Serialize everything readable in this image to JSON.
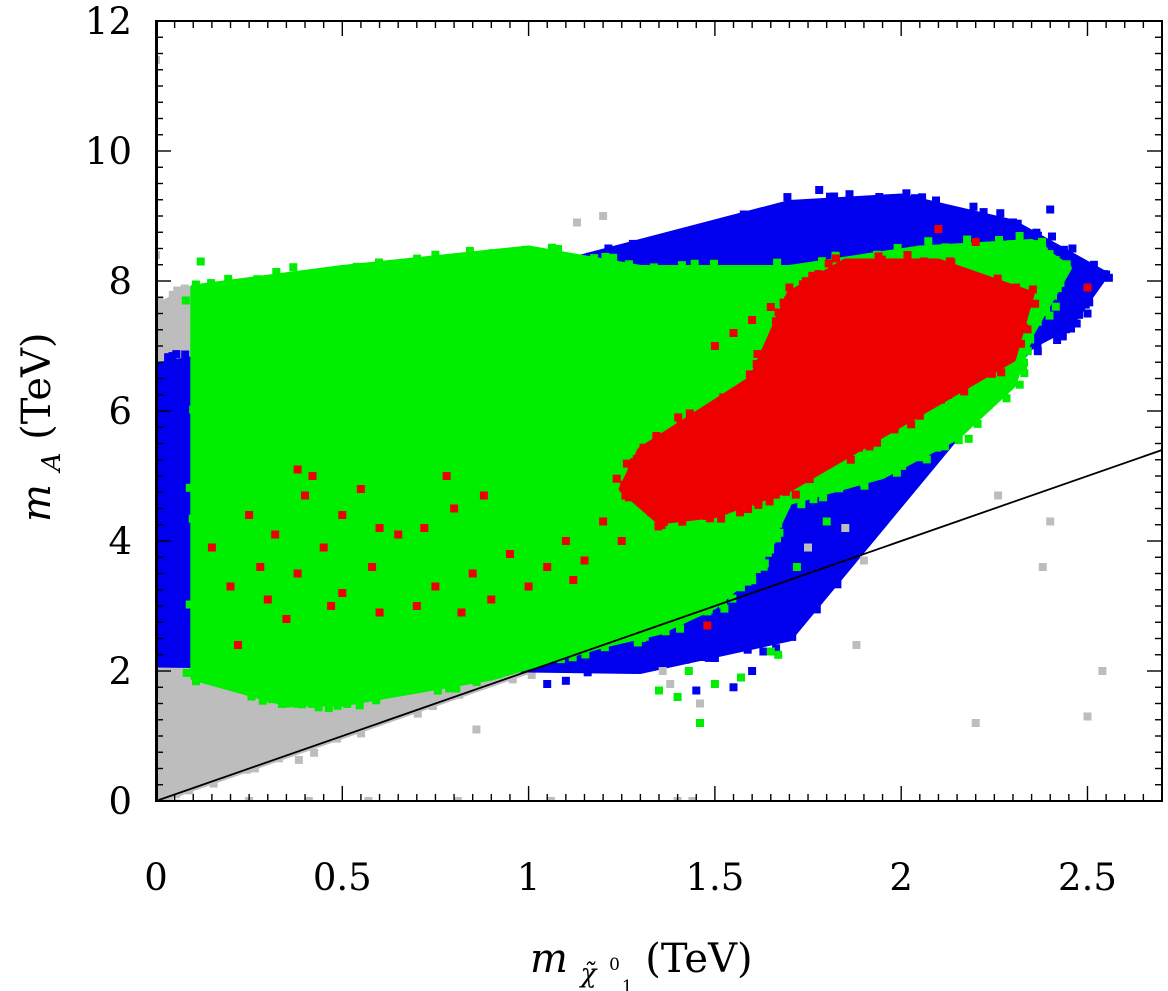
{
  "chart_data": {
    "type": "scatter",
    "title": "",
    "xlabel": {
      "symbol": "m",
      "subscript": "χ̃",
      "subsub_sup": "0",
      "subsub_sub": "1",
      "unit": "(TeV)"
    },
    "ylabel": {
      "symbol": "m",
      "subscript": "A",
      "unit": "(TeV)"
    },
    "xlim": [
      0,
      2.7
    ],
    "ylim": [
      0,
      12
    ],
    "x_ticks": [
      0,
      0.5,
      1,
      1.5,
      2,
      2.5
    ],
    "x_tick_labels": [
      "0",
      "0.5",
      "1",
      "1.5",
      "2",
      "2.5"
    ],
    "y_ticks": [
      0,
      2,
      4,
      6,
      8,
      10,
      12
    ],
    "y_tick_labels": [
      "0",
      "2",
      "4",
      "6",
      "8",
      "10",
      "12"
    ],
    "grid": false,
    "legend": "none",
    "reference_line": {
      "label": "m_A = 2 m_chi",
      "slope": 2,
      "color": "#000000"
    },
    "series": [
      {
        "name": "gray",
        "color": "#bdbdbd",
        "region": [
          [
            0,
            0
          ],
          [
            0,
            7.6
          ],
          [
            0.1,
            7.9
          ],
          [
            0.1,
            2.2
          ],
          [
            0.5,
            1.6
          ],
          [
            1.0,
            2.1
          ],
          [
            1.15,
            2.3
          ],
          [
            0.5,
            1.0
          ],
          [
            0.05,
            0.1
          ]
        ],
        "points": [
          [
            0.0,
            11.4
          ],
          [
            0.0,
            8.4
          ],
          [
            0.01,
            7.7
          ],
          [
            1.13,
            8.9
          ],
          [
            1.2,
            9.0
          ],
          [
            0.25,
            0.0
          ],
          [
            0.41,
            0.0
          ],
          [
            0.57,
            0.0
          ],
          [
            0.81,
            0.0
          ],
          [
            1.06,
            0.0
          ],
          [
            1.4,
            0.0
          ],
          [
            1.44,
            0.0
          ],
          [
            0.86,
            1.1
          ],
          [
            1.36,
            2.0
          ],
          [
            1.38,
            1.8
          ],
          [
            1.46,
            1.5
          ],
          [
            1.9,
            3.7
          ],
          [
            1.88,
            2.4
          ],
          [
            2.2,
            1.2
          ],
          [
            2.26,
            4.7
          ],
          [
            2.38,
            3.6
          ],
          [
            2.4,
            4.3
          ],
          [
            2.54,
            2.0
          ],
          [
            2.5,
            1.3
          ],
          [
            1.75,
            3.9
          ],
          [
            1.85,
            4.2
          ]
        ]
      },
      {
        "name": "blue",
        "color": "#0000ee",
        "region": [
          [
            0,
            2.1
          ],
          [
            0,
            6.7
          ],
          [
            0.1,
            6.8
          ],
          [
            0.1,
            2.1
          ],
          [
            1.1,
            8.3
          ],
          [
            1.7,
            9.2
          ],
          [
            2.0,
            9.3
          ],
          [
            2.3,
            8.9
          ],
          [
            2.55,
            8.1
          ],
          [
            2.45,
            7.3
          ],
          [
            2.35,
            7.0
          ],
          [
            1.7,
            2.5
          ],
          [
            1.3,
            2.0
          ]
        ],
        "points": [
          [
            1.45,
            1.7
          ],
          [
            1.55,
            1.75
          ],
          [
            1.6,
            2.0
          ],
          [
            1.05,
            1.8
          ],
          [
            1.1,
            1.85
          ],
          [
            1.3,
            2.1
          ],
          [
            1.35,
            2.3
          ],
          [
            1.5,
            2.2
          ],
          [
            2.5,
            7.7
          ],
          [
            2.55,
            8.1
          ],
          [
            2.5,
            7.5
          ],
          [
            2.45,
            7.9
          ],
          [
            1.78,
            9.4
          ],
          [
            1.82,
            9.3
          ],
          [
            2.08,
            9.1
          ],
          [
            2.3,
            8.9
          ],
          [
            2.4,
            9.1
          ]
        ]
      },
      {
        "name": "green",
        "color": "#00ee00",
        "region": [
          [
            0.1,
            1.9
          ],
          [
            0.1,
            7.9
          ],
          [
            0.5,
            8.2
          ],
          [
            1.0,
            8.5
          ],
          [
            1.3,
            8.2
          ],
          [
            1.7,
            8.2
          ],
          [
            2.05,
            8.5
          ],
          [
            2.35,
            8.6
          ],
          [
            2.45,
            8.2
          ],
          [
            2.35,
            7.2
          ],
          [
            2.3,
            6.4
          ],
          [
            2.15,
            5.6
          ],
          [
            1.95,
            5.0
          ],
          [
            1.7,
            4.6
          ],
          [
            1.65,
            4.0
          ],
          [
            1.6,
            3.5
          ],
          [
            1.5,
            3.0
          ],
          [
            1.35,
            2.6
          ],
          [
            1.2,
            2.4
          ],
          [
            0.9,
            1.9
          ],
          [
            0.5,
            1.5
          ],
          [
            0.35,
            1.5
          ]
        ],
        "points": [
          [
            1.46,
            1.2
          ],
          [
            1.4,
            1.6
          ],
          [
            1.43,
            2.0
          ],
          [
            1.5,
            1.8
          ],
          [
            1.57,
            1.9
          ],
          [
            1.65,
            2.3
          ],
          [
            1.67,
            2.25
          ],
          [
            1.35,
            1.7
          ],
          [
            1.72,
            3.6
          ],
          [
            1.8,
            4.3
          ],
          [
            1.9,
            4.9
          ],
          [
            0.12,
            8.3
          ],
          [
            0.08,
            7.7
          ],
          [
            0.2,
            1.9
          ]
        ]
      },
      {
        "name": "red",
        "color": "#ee0000",
        "region": [
          [
            1.25,
            4.8
          ],
          [
            1.3,
            5.4
          ],
          [
            1.6,
            6.5
          ],
          [
            1.7,
            7.8
          ],
          [
            1.85,
            8.3
          ],
          [
            2.1,
            8.3
          ],
          [
            2.35,
            7.8
          ],
          [
            2.3,
            6.8
          ],
          [
            2.0,
            5.8
          ],
          [
            1.7,
            4.8
          ],
          [
            1.5,
            4.4
          ],
          [
            1.35,
            4.3
          ]
        ],
        "points": [
          [
            0.15,
            3.9
          ],
          [
            0.2,
            3.3
          ],
          [
            0.25,
            4.4
          ],
          [
            0.28,
            3.6
          ],
          [
            0.3,
            3.1
          ],
          [
            0.32,
            4.1
          ],
          [
            0.35,
            2.8
          ],
          [
            0.38,
            3.5
          ],
          [
            0.4,
            4.7
          ],
          [
            0.45,
            3.9
          ],
          [
            0.5,
            4.4
          ],
          [
            0.5,
            3.2
          ],
          [
            0.55,
            4.8
          ],
          [
            0.58,
            3.6
          ],
          [
            0.6,
            4.2
          ],
          [
            0.65,
            4.1
          ],
          [
            0.7,
            3.0
          ],
          [
            0.72,
            4.2
          ],
          [
            0.75,
            3.3
          ],
          [
            0.8,
            4.5
          ],
          [
            0.82,
            2.9
          ],
          [
            0.85,
            3.5
          ],
          [
            0.9,
            3.1
          ],
          [
            0.95,
            3.8
          ],
          [
            1.0,
            3.3
          ],
          [
            1.05,
            3.6
          ],
          [
            1.1,
            4.0
          ],
          [
            1.12,
            3.4
          ],
          [
            1.15,
            3.7
          ],
          [
            1.2,
            4.3
          ],
          [
            1.25,
            4.0
          ],
          [
            0.78,
            5.0
          ],
          [
            0.88,
            4.7
          ],
          [
            1.3,
            5.0
          ],
          [
            1.35,
            5.3
          ],
          [
            1.4,
            5.7
          ],
          [
            1.47,
            5.9
          ],
          [
            1.5,
            7.0
          ],
          [
            1.55,
            7.2
          ],
          [
            1.6,
            7.4
          ],
          [
            1.65,
            7.6
          ],
          [
            1.7,
            7.9
          ],
          [
            1.48,
            2.7
          ],
          [
            0.22,
            2.4
          ],
          [
            0.42,
            5.0
          ],
          [
            0.38,
            5.1
          ],
          [
            0.6,
            2.9
          ],
          [
            0.47,
            3.0
          ],
          [
            2.5,
            7.9
          ],
          [
            2.2,
            8.6
          ],
          [
            2.1,
            8.8
          ]
        ]
      }
    ]
  }
}
